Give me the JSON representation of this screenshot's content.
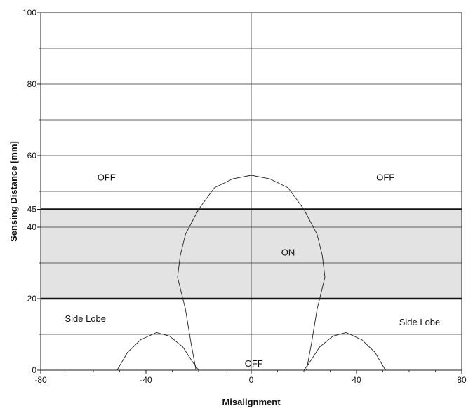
{
  "chart_data": {
    "type": "line",
    "title": "",
    "xlabel": "Misalignment",
    "ylabel": "Sensing Distance [mm]",
    "xlim": [
      -80,
      80
    ],
    "ylim": [
      0,
      100
    ],
    "x_ticks": [
      -80,
      -40,
      0,
      40,
      80
    ],
    "y_ticks": [
      0,
      20,
      40,
      45,
      60,
      80,
      100
    ],
    "grid": true,
    "on_band": {
      "from": 20,
      "to": 45,
      "label": "ON",
      "fill": "#e3e3e3"
    },
    "thresholds": [
      20,
      45
    ],
    "series": [
      {
        "name": "",
        "points": [
          [
            -21,
            0
          ],
          [
            -23,
            8
          ],
          [
            -25,
            17
          ],
          [
            -28,
            26
          ],
          [
            -27,
            32
          ],
          [
            -25,
            38
          ],
          [
            -20,
            45
          ],
          [
            -14,
            51
          ],
          [
            -7,
            53.5
          ],
          [
            0,
            54.5
          ],
          [
            7,
            53.5
          ],
          [
            14,
            51
          ],
          [
            20,
            45
          ],
          [
            25,
            38
          ],
          [
            27,
            32
          ],
          [
            28,
            26
          ],
          [
            25,
            17
          ],
          [
            23,
            8
          ],
          [
            21,
            0
          ]
        ]
      },
      {
        "name": "",
        "points": [
          [
            -51,
            0
          ],
          [
            -47,
            5
          ],
          [
            -42,
            8.5
          ],
          [
            -36,
            10.5
          ],
          [
            -31,
            9.5
          ],
          [
            -26,
            6.5
          ],
          [
            -22,
            2
          ],
          [
            -20,
            0
          ]
        ]
      },
      {
        "name": "",
        "points": [
          [
            20,
            0
          ],
          [
            22,
            2
          ],
          [
            26,
            6.5
          ],
          [
            31,
            9.5
          ],
          [
            36,
            10.5
          ],
          [
            42,
            8.5
          ],
          [
            47,
            5
          ],
          [
            51,
            0
          ]
        ]
      }
    ],
    "annotations": [
      {
        "text": "OFF",
        "x": -55,
        "y": 54
      },
      {
        "text": "OFF",
        "x": 51,
        "y": 54
      },
      {
        "text": "ON",
        "x": 14,
        "y": 33
      },
      {
        "text": "Side Lobe",
        "x": -63,
        "y": 14.5
      },
      {
        "text": "Side Lobe",
        "x": 64,
        "y": 13.5
      },
      {
        "text": "OFF",
        "x": 1,
        "y": 2
      }
    ]
  }
}
